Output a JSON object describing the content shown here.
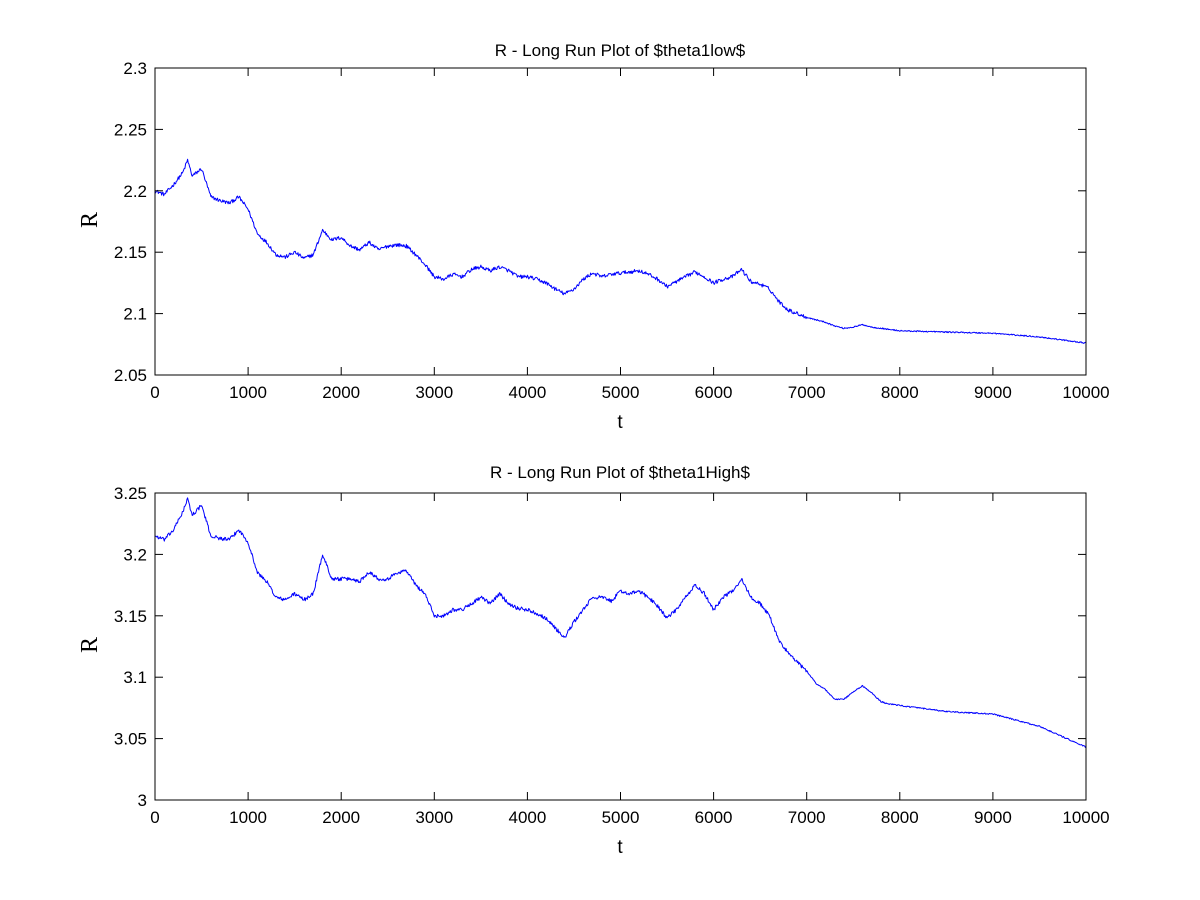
{
  "chart_data": [
    {
      "type": "line",
      "title": "R - Long Run Plot of $theta1low$",
      "xlabel": "t",
      "ylabel": "R",
      "xlim": [
        0,
        10000
      ],
      "ylim": [
        2.05,
        2.3
      ],
      "xticks": [
        0,
        1000,
        2000,
        3000,
        4000,
        5000,
        6000,
        7000,
        8000,
        9000,
        10000
      ],
      "yticks": [
        2.05,
        2.1,
        2.15,
        2.2,
        2.25,
        2.3
      ],
      "ytick_labels": [
        "2.05",
        "2.1",
        "2.15",
        "2.2",
        "2.25",
        "2.3"
      ],
      "grid": false,
      "color": "#0000ff",
      "series": [
        {
          "x": [
            0,
            100,
            200,
            300,
            350,
            400,
            500,
            600,
            700,
            800,
            900,
            1000,
            1100,
            1200,
            1300,
            1400,
            1500,
            1600,
            1700,
            1800,
            1900,
            2000,
            2100,
            2200,
            2300,
            2400,
            2500,
            2600,
            2700,
            2800,
            2900,
            3000,
            3100,
            3200,
            3300,
            3400,
            3500,
            3600,
            3700,
            3800,
            3900,
            4000,
            4100,
            4200,
            4300,
            4400,
            4500,
            4600,
            4700,
            4800,
            4900,
            5000,
            5100,
            5200,
            5300,
            5400,
            5500,
            5600,
            5700,
            5800,
            5900,
            6000,
            6100,
            6200,
            6300,
            6400,
            6500,
            6600,
            6700,
            6800,
            6900,
            7000,
            7100,
            7200,
            7300,
            7400,
            7500,
            7600,
            7700,
            7800,
            7900,
            8000,
            8500,
            9000,
            9500,
            10000
          ],
          "y": [
            2.2,
            2.197,
            2.205,
            2.215,
            2.225,
            2.212,
            2.218,
            2.195,
            2.192,
            2.19,
            2.195,
            2.185,
            2.165,
            2.158,
            2.148,
            2.146,
            2.15,
            2.145,
            2.148,
            2.168,
            2.16,
            2.162,
            2.155,
            2.152,
            2.158,
            2.152,
            2.155,
            2.156,
            2.155,
            2.148,
            2.14,
            2.13,
            2.128,
            2.132,
            2.13,
            2.136,
            2.138,
            2.135,
            2.138,
            2.135,
            2.13,
            2.13,
            2.128,
            2.125,
            2.12,
            2.116,
            2.12,
            2.128,
            2.133,
            2.13,
            2.132,
            2.133,
            2.134,
            2.135,
            2.132,
            2.128,
            2.122,
            2.126,
            2.13,
            2.134,
            2.13,
            2.125,
            2.128,
            2.13,
            2.136,
            2.126,
            2.124,
            2.12,
            2.11,
            2.103,
            2.1,
            2.097,
            2.095,
            2.093,
            2.09,
            2.088,
            2.089,
            2.091,
            2.089,
            2.088,
            2.087,
            2.086,
            2.085,
            2.084,
            2.081,
            2.076
          ]
        }
      ]
    },
    {
      "type": "line",
      "title": "R - Long Run Plot of $theta1High$",
      "xlabel": "t",
      "ylabel": "R",
      "xlim": [
        0,
        10000
      ],
      "ylim": [
        3,
        3.25
      ],
      "xticks": [
        0,
        1000,
        2000,
        3000,
        4000,
        5000,
        6000,
        7000,
        8000,
        9000,
        10000
      ],
      "yticks": [
        3,
        3.05,
        3.1,
        3.15,
        3.2,
        3.25
      ],
      "ytick_labels": [
        "3",
        "3.05",
        "3.1",
        "3.15",
        "3.2",
        "3.25"
      ],
      "grid": false,
      "color": "#0000ff",
      "series": [
        {
          "x": [
            0,
            100,
            200,
            300,
            350,
            400,
            500,
            600,
            700,
            800,
            900,
            1000,
            1100,
            1200,
            1300,
            1400,
            1500,
            1600,
            1700,
            1800,
            1900,
            2000,
            2100,
            2200,
            2300,
            2400,
            2500,
            2600,
            2700,
            2800,
            2900,
            3000,
            3100,
            3200,
            3300,
            3400,
            3500,
            3600,
            3700,
            3800,
            3900,
            4000,
            4100,
            4200,
            4300,
            4400,
            4500,
            4600,
            4700,
            4800,
            4900,
            5000,
            5100,
            5200,
            5300,
            5400,
            5500,
            5600,
            5700,
            5800,
            5900,
            6000,
            6100,
            6200,
            6300,
            6400,
            6500,
            6600,
            6700,
            6800,
            6900,
            7000,
            7100,
            7200,
            7300,
            7400,
            7500,
            7600,
            7700,
            7800,
            7900,
            8000,
            8500,
            9000,
            9500,
            10000
          ],
          "y": [
            3.215,
            3.212,
            3.22,
            3.235,
            3.245,
            3.232,
            3.24,
            3.215,
            3.213,
            3.212,
            3.22,
            3.21,
            3.185,
            3.178,
            3.165,
            3.163,
            3.168,
            3.163,
            3.168,
            3.2,
            3.18,
            3.18,
            3.18,
            3.178,
            3.186,
            3.18,
            3.18,
            3.185,
            3.187,
            3.175,
            3.168,
            3.15,
            3.15,
            3.155,
            3.155,
            3.16,
            3.165,
            3.16,
            3.168,
            3.16,
            3.156,
            3.155,
            3.152,
            3.148,
            3.14,
            3.132,
            3.145,
            3.155,
            3.165,
            3.165,
            3.162,
            3.17,
            3.168,
            3.17,
            3.165,
            3.158,
            3.148,
            3.155,
            3.165,
            3.175,
            3.168,
            3.155,
            3.165,
            3.17,
            3.18,
            3.165,
            3.16,
            3.15,
            3.13,
            3.12,
            3.112,
            3.105,
            3.095,
            3.09,
            3.082,
            3.082,
            3.088,
            3.093,
            3.087,
            3.08,
            3.078,
            3.077,
            3.072,
            3.07,
            3.06,
            3.043
          ]
        }
      ]
    }
  ]
}
